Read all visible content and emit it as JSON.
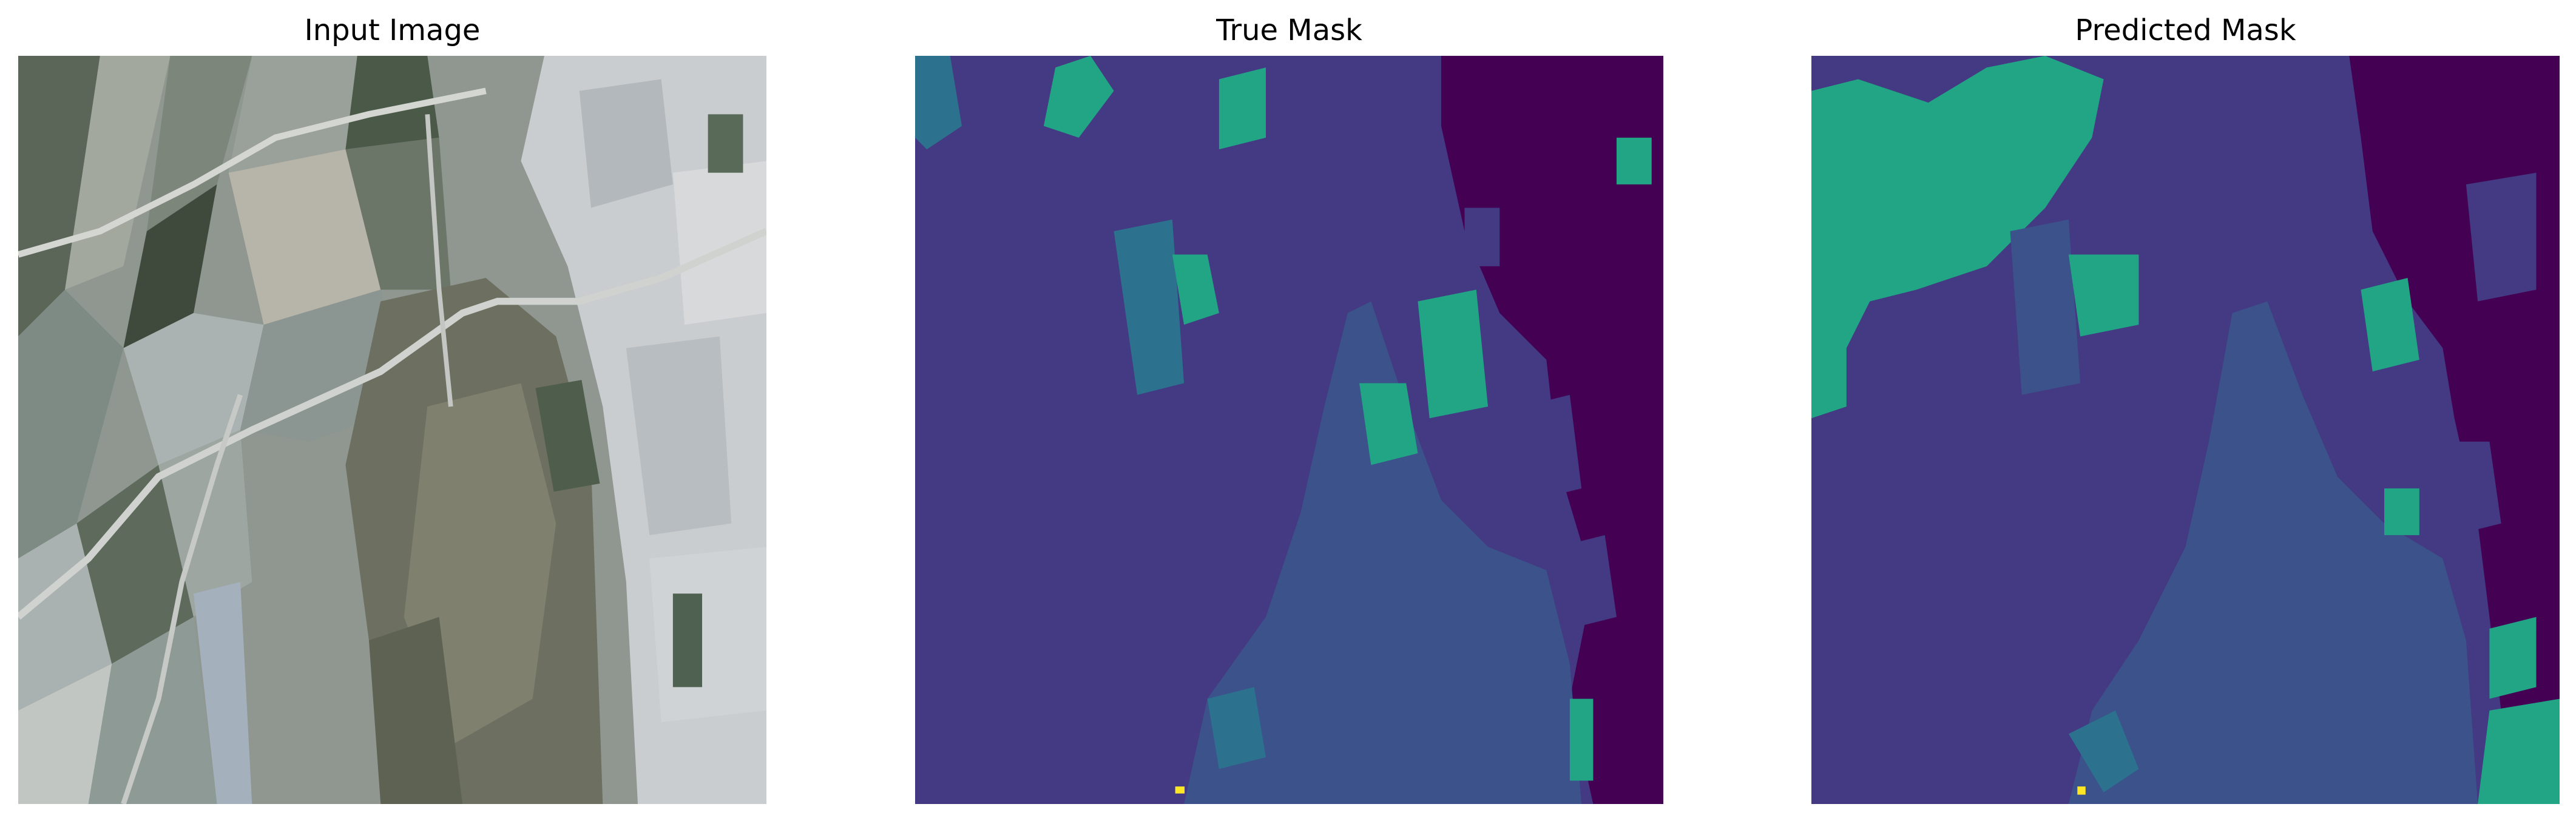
{
  "panels": [
    {
      "title": "Input Image"
    },
    {
      "title": "True Mask"
    },
    {
      "title": "Predicted Mask"
    }
  ],
  "colors": {
    "mask_class_dark_purple": "#440154",
    "mask_class_indigo": "#443983",
    "mask_class_blue": "#3b528b",
    "mask_class_teal": "#2c728e",
    "mask_class_green": "#21a585",
    "mask_class_yellow": "#fde725",
    "satellite_field_dark": "#3f4a3c",
    "satellite_field_light": "#8a948e",
    "satellite_urban": "#c9cdd0",
    "background": "#ffffff"
  }
}
